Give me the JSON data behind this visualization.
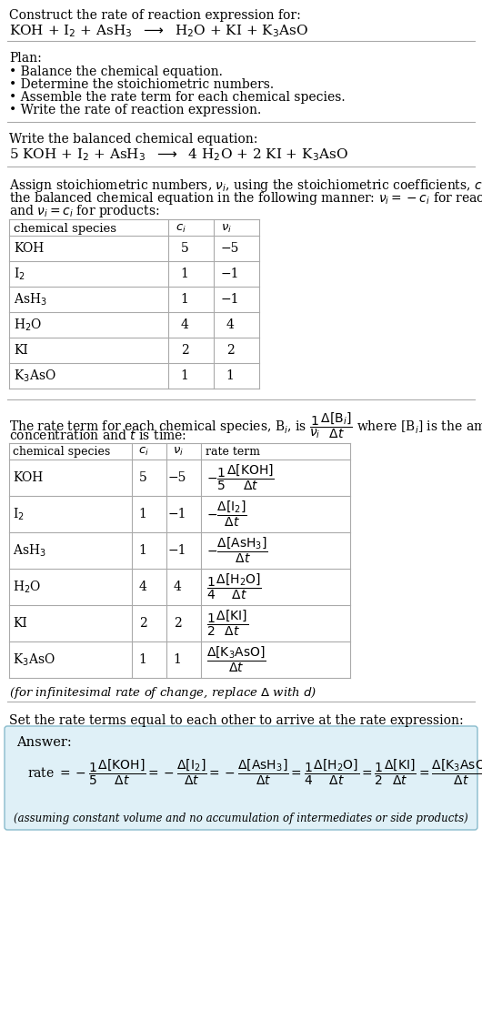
{
  "title_line1": "Construct the rate of reaction expression for:",
  "plan_header": "Plan:",
  "plan_items": [
    "• Balance the chemical equation.",
    "• Determine the stoichiometric numbers.",
    "• Assemble the rate term for each chemical species.",
    "• Write the rate of reaction expression."
  ],
  "balanced_header": "Write the balanced chemical equation:",
  "table1_rows": [
    [
      "KOH",
      "5",
      "−5"
    ],
    [
      "I₂",
      "1",
      "−1"
    ],
    [
      "AsH₃",
      "1",
      "−1"
    ],
    [
      "H₂O",
      "4",
      "4"
    ],
    [
      "KI",
      "2",
      "2"
    ],
    [
      "K₃AsO",
      "1",
      "1"
    ]
  ],
  "table2_rows": [
    [
      "KOH",
      "5",
      "−5"
    ],
    [
      "I₂",
      "1",
      "−1"
    ],
    [
      "AsH₃",
      "1",
      "−1"
    ],
    [
      "H₂O",
      "4",
      "4"
    ],
    [
      "KI",
      "2",
      "2"
    ],
    [
      "K₃AsO",
      "1",
      "1"
    ]
  ],
  "set_equal_text": "Set the rate terms equal to each other to arrive at the rate expression:",
  "answer_label": "Answer:",
  "answer_note": "(assuming constant volume and no accumulation of intermediates or side products)",
  "bg_color": "#ffffff",
  "table_line_color": "#aaaaaa",
  "answer_box_color": "#dff0f7",
  "answer_box_border": "#88bbcc",
  "text_color": "#000000"
}
